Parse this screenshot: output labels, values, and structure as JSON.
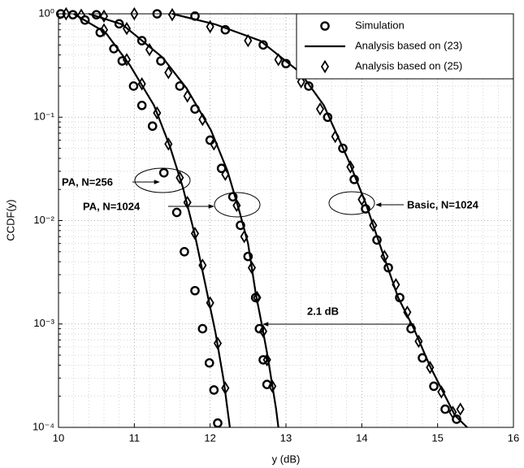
{
  "chart_data": {
    "type": "line",
    "xlabel": "y (dB)",
    "ylabel": "CCDF(y)",
    "xlim": [
      10,
      16
    ],
    "xticks": [
      10,
      11,
      12,
      13,
      14,
      15,
      16
    ],
    "ylim": [
      0.0001,
      1
    ],
    "yticks": [
      {
        "value": 0.0001,
        "label": "10⁻⁴"
      },
      {
        "value": 0.001,
        "label": "10⁻³"
      },
      {
        "value": 0.01,
        "label": "10⁻²"
      },
      {
        "value": 0.1,
        "label": "10⁻¹"
      },
      {
        "value": 1,
        "label": "10⁰"
      }
    ],
    "log_y": true,
    "grid": true,
    "legend": "upper right",
    "annotations": [
      "PA, N=256",
      "PA, N=1024",
      "Basic, N=1024",
      "2.1 dB"
    ],
    "series": [
      {
        "name": "Simulation",
        "color": "#000000",
        "marker": "circle",
        "curves": [
          {
            "x": [
              10.03,
              10.19,
              10.35,
              10.55,
              10.73,
              10.84,
              10.99,
              11.1,
              11.24,
              11.39,
              11.56,
              11.66,
              11.8,
              11.9,
              11.99,
              12.05,
              12.1
            ],
            "values": [
              1,
              0.98,
              0.87,
              0.66,
              0.46,
              0.35,
              0.2,
              0.13,
              0.082,
              0.029,
              0.012,
              0.005,
              0.0021,
              0.0009,
              0.00042,
              0.00023,
              0.00011
            ]
          },
          {
            "x": [
              10.5,
              10.8,
              11.1,
              11.35,
              11.6,
              11.8,
              12.0,
              12.15,
              12.3,
              12.4,
              12.5,
              12.6,
              12.65,
              12.7,
              12.75
            ],
            "values": [
              0.98,
              0.8,
              0.55,
              0.35,
              0.2,
              0.12,
              0.06,
              0.032,
              0.017,
              0.009,
              0.0045,
              0.0018,
              0.0009,
              0.00045,
              0.00026
            ]
          },
          {
            "x": [
              11.3,
              11.8,
              12.2,
              12.7,
              13.0,
              13.3,
              13.55,
              13.75,
              13.9,
              14.05,
              14.2,
              14.35,
              14.5,
              14.65,
              14.8,
              14.95,
              15.1,
              15.25
            ],
            "values": [
              1,
              0.95,
              0.7,
              0.5,
              0.33,
              0.2,
              0.1,
              0.05,
              0.025,
              0.013,
              0.0065,
              0.0035,
              0.0018,
              0.0009,
              0.00047,
              0.00025,
              0.00015,
              0.00012
            ]
          }
        ]
      },
      {
        "name": "Analysis based on (23)",
        "color": "#000000",
        "marker": "none",
        "curves": [
          {
            "x": [
              10.2,
              10.62,
              10.94,
              11.26,
              11.47,
              11.64,
              11.8,
              11.96,
              12.07,
              12.18,
              12.26
            ],
            "values": [
              1,
              0.66,
              0.32,
              0.13,
              0.052,
              0.021,
              0.0072,
              0.002,
              0.00083,
              0.00028,
              0.0001
            ]
          },
          {
            "x": [
              10.4,
              10.84,
              11.37,
              11.69,
              12.01,
              12.23,
              12.39,
              12.5,
              12.6,
              12.68,
              12.76,
              12.87,
              12.9
            ],
            "values": [
              1,
              0.79,
              0.38,
              0.19,
              0.075,
              0.03,
              0.012,
              0.006,
              0.002,
              0.001,
              0.00048,
              0.00015,
              0.0001
            ]
          },
          {
            "x": [
              11.5,
              12.07,
              12.66,
              13.19,
              13.5,
              13.84,
              14.05,
              14.27,
              14.48,
              14.69,
              14.9,
              15.23,
              15.39
            ],
            "values": [
              1,
              0.79,
              0.55,
              0.27,
              0.13,
              0.036,
              0.0148,
              0.005,
              0.0018,
              0.00089,
              0.00039,
              0.00013,
              0.0001
            ]
          }
        ]
      },
      {
        "name": "Analysis based on (25)",
        "color": "#000000",
        "marker": "diamond",
        "curves": [
          {
            "x": [
              10.1,
              10.3,
              10.6,
              10.9,
              11.1,
              11.3,
              11.45,
              11.6,
              11.7,
              11.8,
              11.9,
              12.0,
              12.1,
              12.2
            ],
            "values": [
              1,
              0.97,
              0.7,
              0.36,
              0.21,
              0.11,
              0.055,
              0.026,
              0.015,
              0.0075,
              0.0037,
              0.0016,
              0.00065,
              0.00024
            ]
          },
          {
            "x": [
              10.6,
              10.9,
              11.2,
              11.45,
              11.7,
              11.9,
              12.05,
              12.2,
              12.35,
              12.45,
              12.55,
              12.62,
              12.7,
              12.75,
              12.82
            ],
            "values": [
              0.95,
              0.72,
              0.45,
              0.27,
              0.16,
              0.095,
              0.055,
              0.028,
              0.014,
              0.007,
              0.0035,
              0.0018,
              0.00085,
              0.00045,
              0.00025
            ]
          },
          {
            "x": [
              11.0,
              11.5,
              12.0,
              12.5,
              12.9,
              13.2,
              13.45,
              13.65,
              13.85,
              14.0,
              14.15,
              14.3,
              14.45,
              14.6,
              14.75,
              14.9,
              15.05,
              15.2,
              15.3
            ],
            "values": [
              1,
              0.98,
              0.75,
              0.55,
              0.36,
              0.22,
              0.12,
              0.065,
              0.033,
              0.016,
              0.009,
              0.0045,
              0.0024,
              0.0013,
              0.00068,
              0.00038,
              0.00022,
              0.00014,
              0.00015
            ]
          }
        ]
      }
    ]
  }
}
